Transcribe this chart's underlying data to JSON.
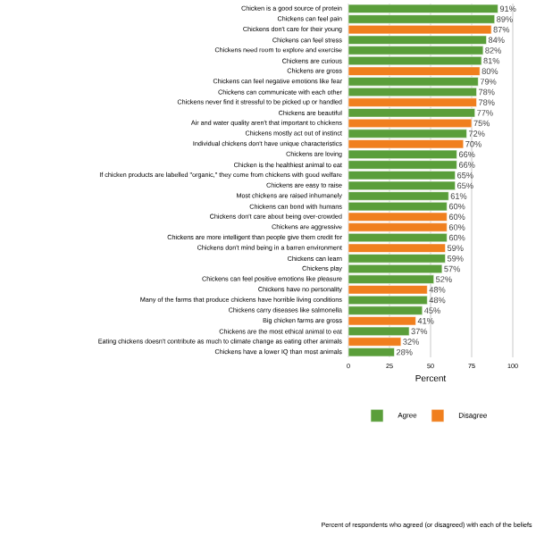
{
  "chart_data": {
    "type": "bar",
    "orientation": "horizontal",
    "xlabel": "Percent",
    "categories": [
      "Chicken is a good source of protein",
      "Chickens can feel pain",
      "Chickens don't care for their young",
      "Chickens can feel stress",
      "Chickens need room to explore and exercise",
      "Chickens are curious",
      "Chickens are gross",
      "Chickens can feel negative emotions like fear",
      "Chickens can communicate with each other",
      "Chickens never find it stressful to be picked up or handled",
      "Chickens are beautiful",
      "Air and water quality aren't that important to chickens",
      "Chickens mostly act out of instinct",
      "Individual chickens don't have unique characteristics",
      "Chickens are loving",
      "Chicken is the healthiest animal to eat",
      "If chicken products are labelled \"organic,\" they come from chickens with good welfare",
      "Chickens are easy to raise",
      "Most chickens are raised inhumanely",
      "Chickens can bond with humans",
      "Chickens don't care about being over-crowded",
      "Chickens are aggressive",
      "Chickens are more intelligent than people give them credit for",
      "Chickens don't mind being in a barren environment",
      "Chickens can learn",
      "Chickens play",
      "Chickens can feel positive emotions like pleasure",
      "Chickens have no personality",
      "Many of the farms that produce chickens have horrible living conditions",
      "Chickens carry diseases like salmonella",
      "Big chicken farms are gross",
      "Chickens are the most ethical animal to eat",
      "Eating chickens doesn't contribute as much to climate change as eating other animals",
      "Chickens have a lower IQ than most animals"
    ],
    "series": [
      {
        "name": "Agree",
        "color": "#5a9e3a",
        "values": [
          91,
          89,
          null,
          84,
          82,
          81,
          null,
          79,
          78,
          null,
          77,
          null,
          72,
          null,
          66,
          66,
          65,
          65,
          61,
          60,
          null,
          null,
          60,
          null,
          59,
          57,
          52,
          null,
          48,
          45,
          null,
          37,
          null,
          28
        ],
        "value_labels": [
          "91%",
          "89%",
          null,
          "84%",
          "82%",
          "81%",
          null,
          "79%",
          "78%",
          null,
          "77%",
          null,
          "72%",
          null,
          "66%",
          "66%",
          "65%",
          "65%",
          "61%",
          "60%",
          null,
          null,
          "60%",
          null,
          "59%",
          "57%",
          "52%",
          null,
          "48%",
          "45%",
          null,
          "37%",
          null,
          "28%"
        ]
      },
      {
        "name": "Disagree",
        "color": "#f07f1e",
        "values": [
          null,
          null,
          87,
          null,
          null,
          null,
          80,
          null,
          null,
          78,
          null,
          75,
          null,
          70,
          null,
          null,
          null,
          null,
          null,
          null,
          60,
          60,
          null,
          59,
          null,
          null,
          null,
          48,
          null,
          null,
          41,
          null,
          32,
          null
        ],
        "value_labels": [
          null,
          null,
          "87%",
          null,
          null,
          null,
          "80%",
          null,
          null,
          "78%",
          null,
          "75%",
          null,
          "70%",
          null,
          null,
          null,
          null,
          null,
          null,
          "60%",
          "60%",
          null,
          "59%",
          null,
          null,
          null,
          "48%",
          null,
          null,
          "41%",
          null,
          "32%",
          null
        ]
      }
    ],
    "xlim": [
      0,
      100
    ],
    "xticks": [
      0,
      25,
      50,
      75,
      100
    ],
    "grid": "x",
    "legend": "bottom",
    "annotations": [
      "Percent of respondents who agreed (or disagreed) with each of the beliefs"
    ]
  }
}
